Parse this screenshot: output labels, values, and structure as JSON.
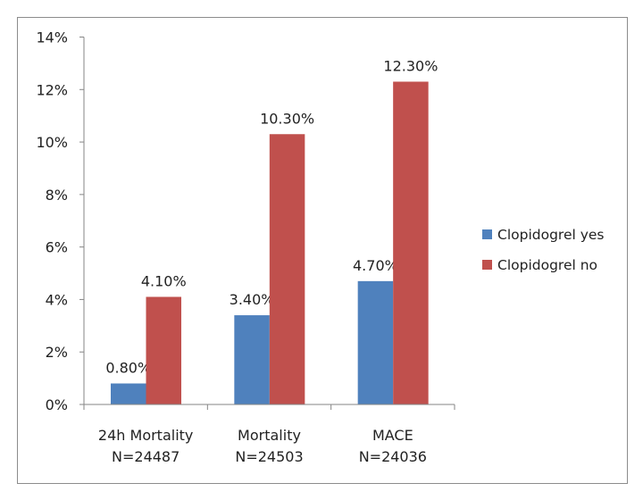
{
  "chart_data": {
    "type": "bar",
    "title": "",
    "xlabel": "",
    "ylabel": "",
    "categories": [
      {
        "line1": "24h Mortality",
        "line2": "N=24487"
      },
      {
        "line1": "Mortality",
        "line2": "N=24503"
      },
      {
        "line1": "MACE",
        "line2": "N=24036"
      }
    ],
    "series": [
      {
        "name": "Clopidogrel yes",
        "color": "#4f81bd",
        "values": [
          0.8,
          3.4,
          4.7
        ],
        "labels": [
          "0.80%",
          "3.40%",
          "4.70%"
        ]
      },
      {
        "name": "Clopidogrel no",
        "color": "#c0504d",
        "values": [
          4.1,
          10.3,
          12.3
        ],
        "labels": [
          "4.10%",
          "10.30%",
          "12.30%"
        ]
      }
    ],
    "ylim": [
      0,
      14
    ],
    "yticks": [
      "0%",
      "2%",
      "4%",
      "6%",
      "8%",
      "10%",
      "12%",
      "14%"
    ],
    "grid": false,
    "legend": "right"
  }
}
